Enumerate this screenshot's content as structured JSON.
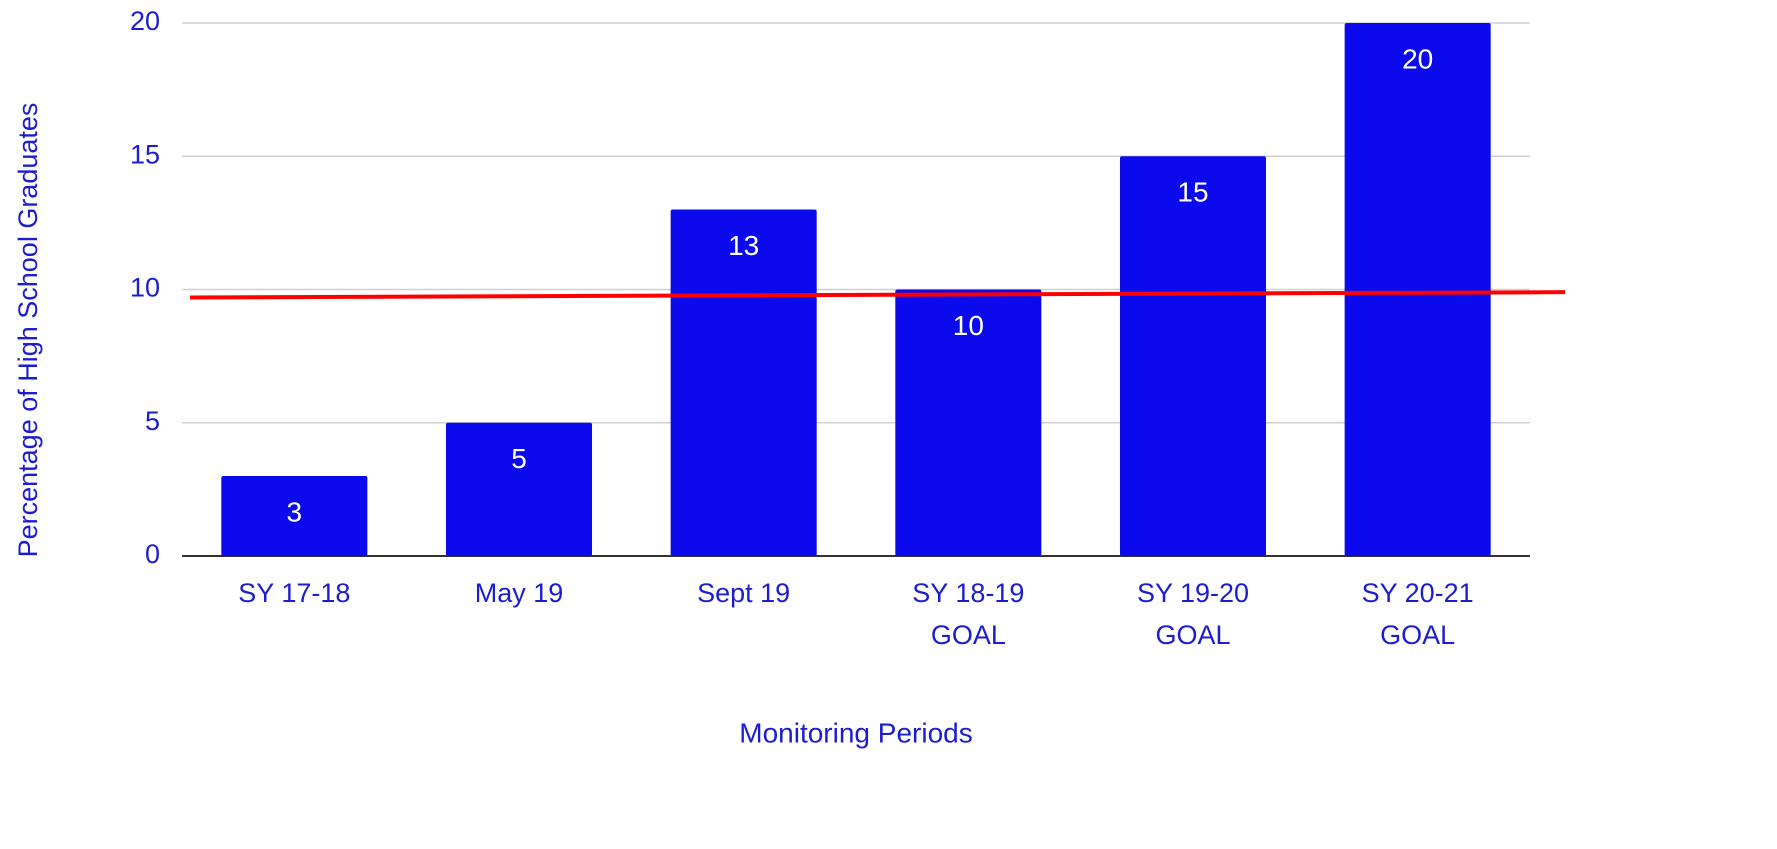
{
  "chart_data": {
    "type": "bar",
    "x_label": "Monitoring Periods",
    "y_label": "Percentage of High School Graduates",
    "categories": [
      "SY 17-18",
      "May 19",
      "Sept 19",
      "SY 18-19 GOAL",
      "SY 19-20 GOAL",
      "SY 20-21 GOAL"
    ],
    "values": [
      3,
      5,
      13,
      10,
      15,
      20
    ],
    "color": "#0a0aec",
    "ylim": [
      0,
      20
    ],
    "yticks": [
      0,
      5,
      10,
      15,
      20
    ],
    "grid": true,
    "reference_line": {
      "color": "#ff0000",
      "values": [
        9.7,
        9.9
      ]
    }
  }
}
